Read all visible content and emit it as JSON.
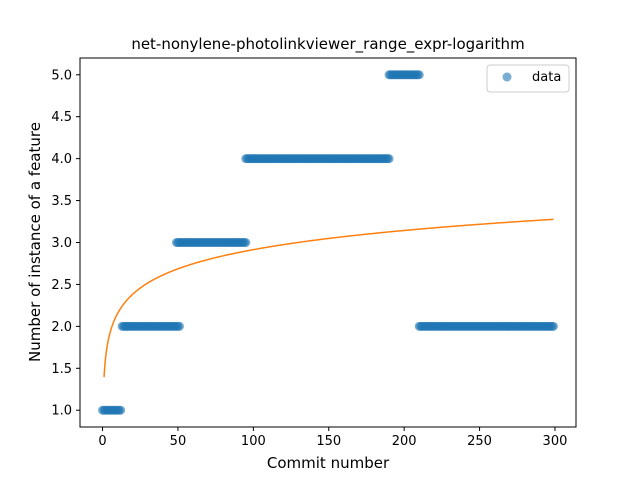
{
  "chart_data": {
    "type": "scatter",
    "title": "net-nonylene-photolinkviewer_range_expr-logarithm",
    "xlabel": "Commit number",
    "ylabel": "Number of instance of a feature",
    "xlim": [
      -14.95,
      313.95
    ],
    "ylim": [
      0.8,
      5.2
    ],
    "xticks": [
      0,
      50,
      100,
      150,
      200,
      250,
      300
    ],
    "yticks": [
      1.0,
      1.5,
      2.0,
      2.5,
      3.0,
      3.5,
      4.0,
      4.5,
      5.0
    ],
    "xtick_labels": [
      "0",
      "50",
      "100",
      "150",
      "200",
      "250",
      "300"
    ],
    "ytick_labels": [
      "1.0",
      "1.5",
      "2.0",
      "2.5",
      "3.0",
      "3.5",
      "4.0",
      "4.5",
      "5.0"
    ],
    "grid": false,
    "legend": {
      "position": "top-right",
      "entries": [
        "data"
      ]
    },
    "series": [
      {
        "name": "data",
        "kind": "scatter",
        "color": "#1f77b4",
        "segments": [
          {
            "x_start": 0,
            "x_end": 12,
            "y": 1.0
          },
          {
            "x_start": 13,
            "x_end": 51,
            "y": 2.0
          },
          {
            "x_start": 49,
            "x_end": 95,
            "y": 3.0
          },
          {
            "x_start": 95,
            "x_end": 190,
            "y": 4.0
          },
          {
            "x_start": 190,
            "x_end": 210,
            "y": 5.0
          },
          {
            "x_start": 210,
            "x_end": 299,
            "y": 2.0
          }
        ]
      },
      {
        "kind": "line",
        "color": "#ff7f0e",
        "fit": {
          "form": "a + b*ln(x)",
          "a": 1.395,
          "b": 0.33,
          "x_start": 1,
          "x_end": 299
        }
      }
    ]
  }
}
